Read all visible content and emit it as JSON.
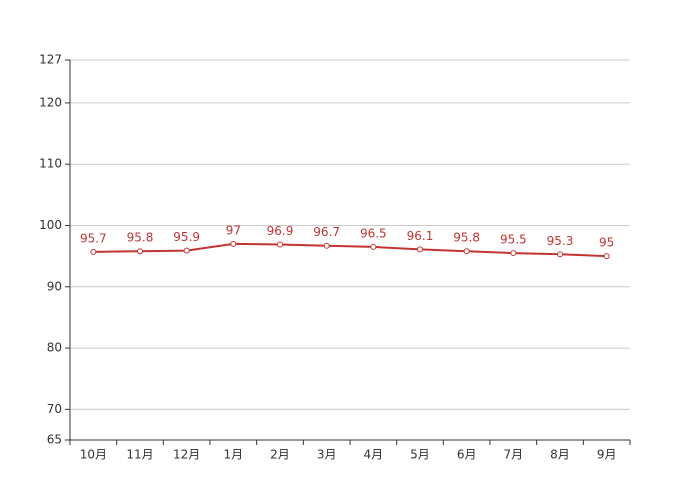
{
  "chart_data": {
    "type": "line",
    "categories": [
      "10月",
      "11月",
      "12月",
      "1月",
      "2月",
      "3月",
      "4月",
      "5月",
      "6月",
      "7月",
      "8月",
      "9月"
    ],
    "series": [
      {
        "color": "#c23531",
        "values": [
          95.7,
          95.8,
          95.9,
          97,
          96.9,
          96.7,
          96.5,
          96.1,
          95.8,
          95.5,
          95.3,
          95
        ]
      }
    ],
    "ylim": [
      65,
      127
    ],
    "yticks": [
      65,
      70,
      80,
      90,
      100,
      110,
      120,
      127
    ],
    "grid": true
  }
}
